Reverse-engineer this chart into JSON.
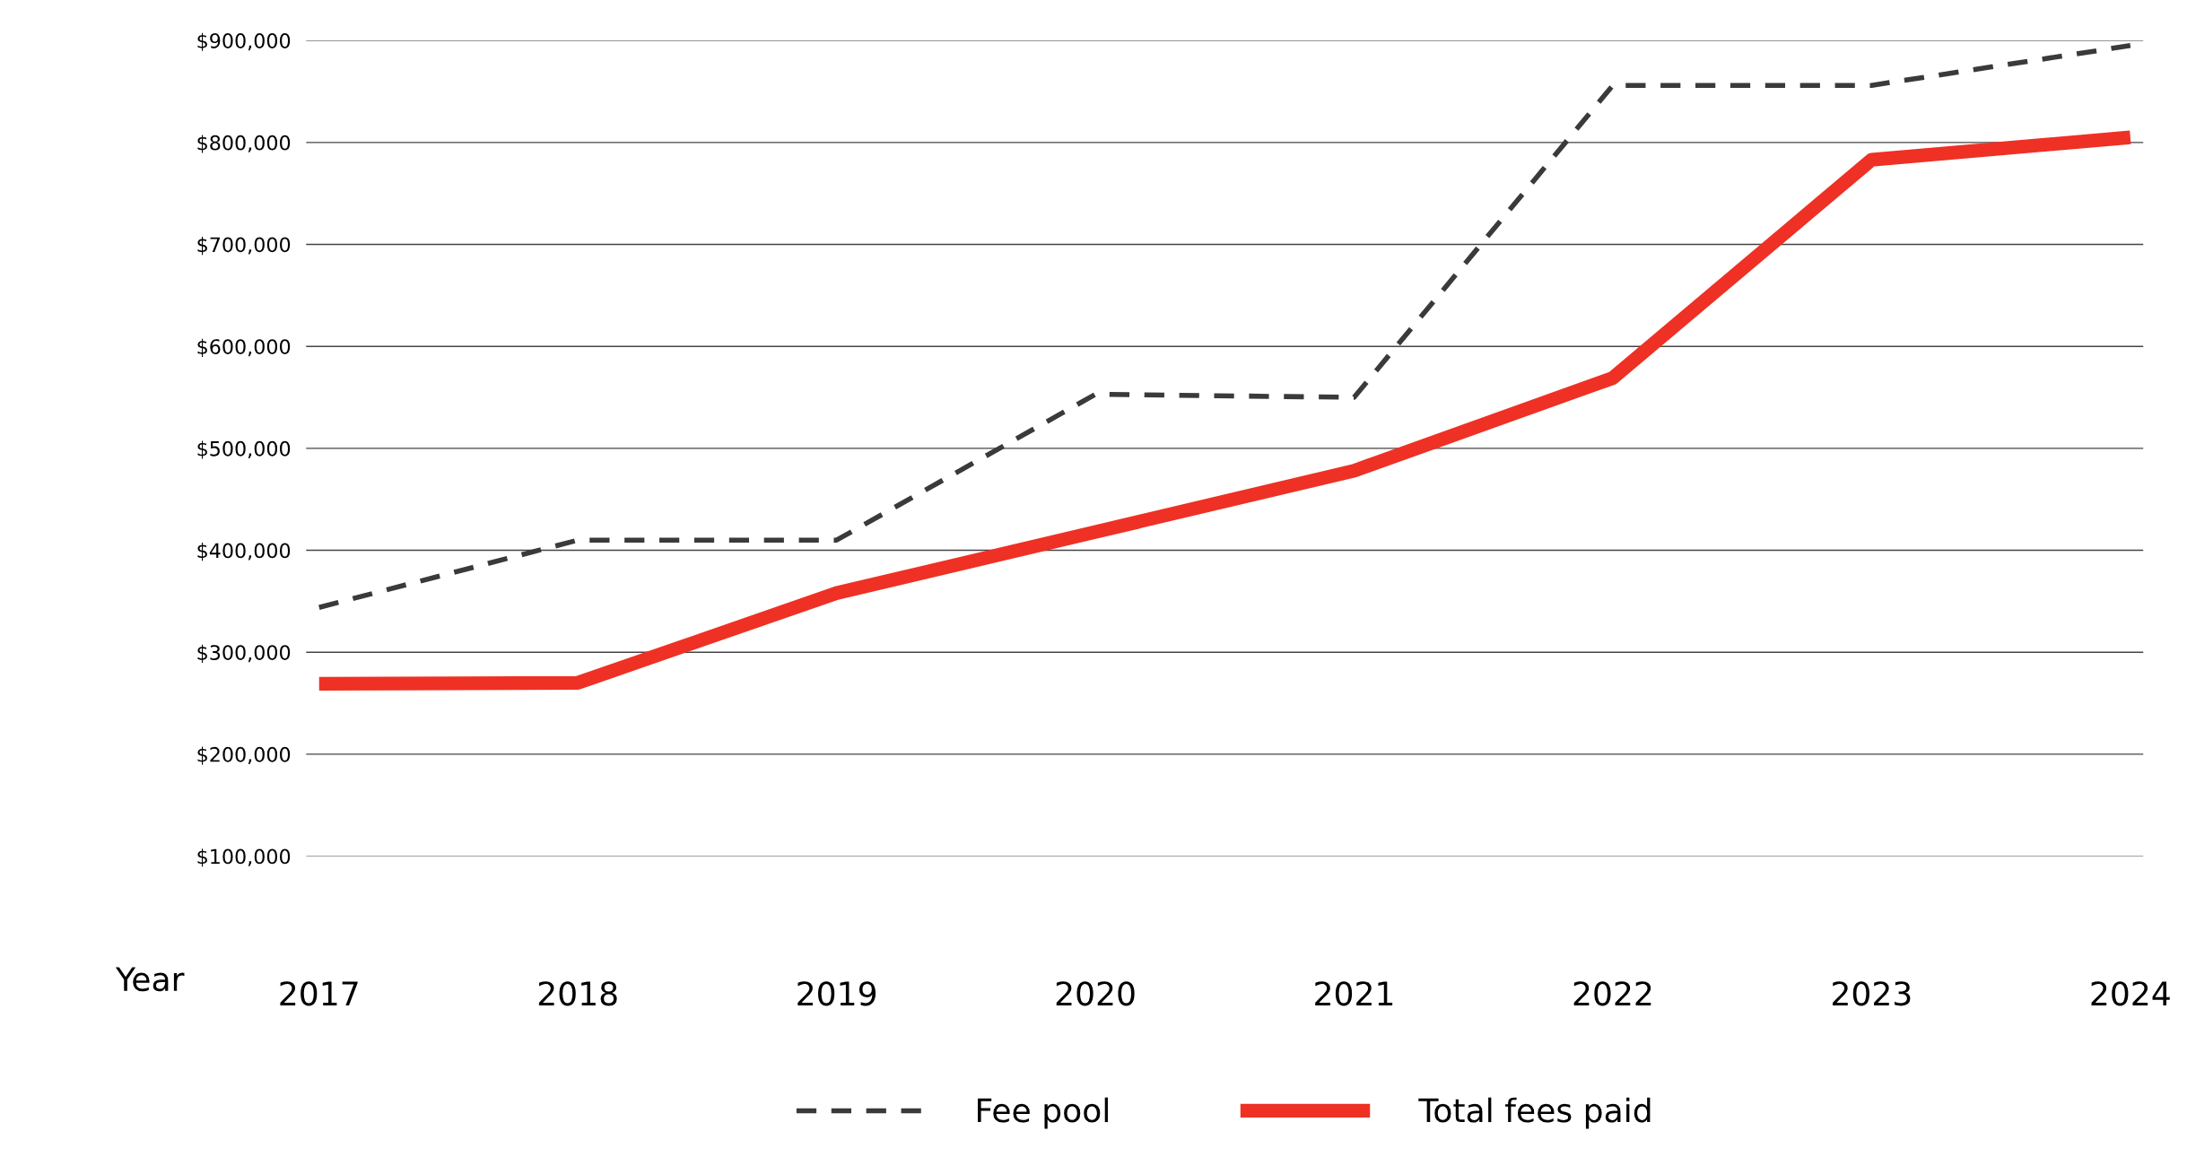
{
  "chart_data": {
    "type": "line",
    "xlabel": "Year",
    "categories": [
      "2017",
      "2018",
      "2019",
      "2020",
      "2021",
      "2022",
      "2023",
      "2024"
    ],
    "series": [
      {
        "name": "Fee pool",
        "color": "#3a3a3a",
        "line_style": "dashed",
        "values": [
          344000,
          410000,
          410000,
          553000,
          550000,
          856000,
          856000,
          895000
        ]
      },
      {
        "name": "Total fees paid",
        "color": "#ee3124",
        "line_style": "solid",
        "values": [
          269000,
          270000,
          358000,
          418000,
          478000,
          569000,
          783000,
          805000
        ]
      }
    ],
    "ylim": [
      100000,
      900000
    ],
    "yticks": [
      {
        "value": 100000,
        "label": "$100,000"
      },
      {
        "value": 200000,
        "label": "$200,000"
      },
      {
        "value": 300000,
        "label": "$300,000"
      },
      {
        "value": 400000,
        "label": "$400,000"
      },
      {
        "value": 500000,
        "label": "$500,000"
      },
      {
        "value": 600000,
        "label": "$600,000"
      },
      {
        "value": 700000,
        "label": "$700,000"
      },
      {
        "value": 800000,
        "label": "$800,000"
      },
      {
        "value": 900000,
        "label": "$900,000"
      }
    ],
    "grid": "y",
    "legend": "bottom"
  }
}
